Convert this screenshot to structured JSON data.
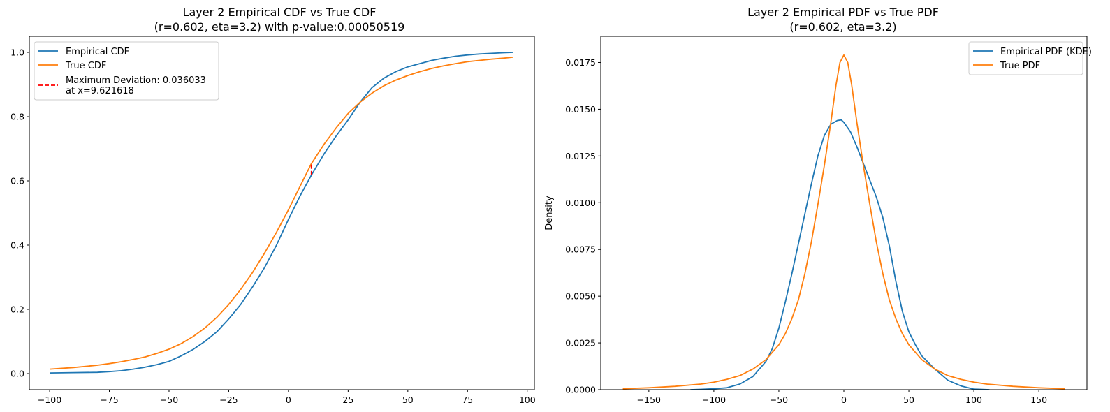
{
  "chart_data": [
    {
      "type": "line",
      "title": [
        "Layer 2 Empirical CDF vs True CDF",
        "(r=0.602, eta=3.2) with p-value:0.00050519"
      ],
      "xlabel": "",
      "ylabel": "",
      "xlim": [
        -108.5,
        103
      ],
      "ylim": [
        -0.05,
        1.05
      ],
      "xticks": [
        -100,
        -75,
        -50,
        -25,
        0,
        25,
        50,
        75,
        100
      ],
      "xtick_labels": [
        "−100",
        "−75",
        "−50",
        "−25",
        "0",
        "25",
        "50",
        "75",
        "100"
      ],
      "yticks": [
        0.0,
        0.2,
        0.4,
        0.6,
        0.8,
        1.0
      ],
      "ytick_labels": [
        "0.0",
        "0.2",
        "0.4",
        "0.6",
        "0.8",
        "1.0"
      ],
      "grid": false,
      "legend_position": "upper-left",
      "legend": [
        "Empirical CDF",
        "True CDF",
        "Maximum Deviation: 0.036033",
        "at x=9.621618"
      ],
      "series": [
        {
          "name": "Empirical CDF",
          "color": "#1f77b4",
          "x": [
            -100,
            -90,
            -80,
            -75,
            -70,
            -65,
            -60,
            -55,
            -50,
            -45,
            -40,
            -35,
            -30,
            -25,
            -20,
            -15,
            -10,
            -5,
            0,
            5,
            9.62,
            15,
            20,
            25,
            30,
            35,
            40,
            45,
            50,
            55,
            60,
            65,
            70,
            75,
            80,
            85,
            90,
            94
          ],
          "y": [
            0.002,
            0.003,
            0.004,
            0.006,
            0.009,
            0.014,
            0.02,
            0.028,
            0.038,
            0.055,
            0.075,
            0.1,
            0.13,
            0.17,
            0.215,
            0.27,
            0.33,
            0.4,
            0.48,
            0.555,
            0.618,
            0.685,
            0.74,
            0.79,
            0.845,
            0.89,
            0.92,
            0.94,
            0.955,
            0.965,
            0.975,
            0.982,
            0.988,
            0.992,
            0.995,
            0.997,
            0.999,
            1.0
          ]
        },
        {
          "name": "True CDF",
          "color": "#ff7f0e",
          "x": [
            -100,
            -90,
            -80,
            -75,
            -70,
            -65,
            -60,
            -55,
            -50,
            -45,
            -40,
            -35,
            -30,
            -25,
            -20,
            -15,
            -10,
            -5,
            0,
            5,
            9.62,
            15,
            20,
            25,
            30,
            35,
            40,
            45,
            50,
            55,
            60,
            65,
            70,
            75,
            80,
            85,
            90,
            94
          ],
          "y": [
            0.014,
            0.019,
            0.026,
            0.031,
            0.037,
            0.044,
            0.052,
            0.063,
            0.076,
            0.093,
            0.115,
            0.142,
            0.175,
            0.215,
            0.262,
            0.315,
            0.375,
            0.44,
            0.51,
            0.585,
            0.654,
            0.715,
            0.765,
            0.81,
            0.845,
            0.873,
            0.896,
            0.914,
            0.928,
            0.94,
            0.95,
            0.958,
            0.965,
            0.971,
            0.975,
            0.979,
            0.982,
            0.985
          ]
        }
      ],
      "max_deviation": {
        "label": "Maximum Deviation: 0.036033",
        "label_line2": "at x=9.621618",
        "x": 9.621618,
        "y_low": 0.618,
        "y_high": 0.654,
        "color": "#ff0000"
      }
    },
    {
      "type": "line",
      "title": [
        "Layer 2 Empirical PDF vs True PDF",
        "(r=0.602, eta=3.2)"
      ],
      "xlabel": "",
      "ylabel": "Density",
      "xlim": [
        -187,
        187
      ],
      "ylim": [
        0,
        0.0189
      ],
      "xticks": [
        -150,
        -100,
        -50,
        0,
        50,
        100,
        150
      ],
      "xtick_labels": [
        "−150",
        "−100",
        "−50",
        "0",
        "50",
        "100",
        "150"
      ],
      "yticks": [
        0.0,
        0.0025,
        0.005,
        0.0075,
        0.01,
        0.0125,
        0.015,
        0.0175
      ],
      "ytick_labels": [
        "0.0000",
        "0.0025",
        "0.0050",
        "0.0075",
        "0.0100",
        "0.0125",
        "0.0150",
        "0.0175"
      ],
      "grid": false,
      "legend_position": "upper-right",
      "legend": [
        "Empirical PDF (KDE)",
        "True PDF"
      ],
      "series": [
        {
          "name": "Empirical PDF (KDE)",
          "color": "#1f77b4",
          "x": [
            -118,
            -110,
            -100,
            -90,
            -80,
            -70,
            -60,
            -55,
            -50,
            -45,
            -40,
            -35,
            -30,
            -25,
            -20,
            -15,
            -10,
            -5,
            -2,
            0,
            5,
            10,
            15,
            20,
            25,
            30,
            35,
            40,
            45,
            50,
            55,
            60,
            70,
            80,
            90,
            100,
            112
          ],
          "y": [
            0.0,
            2e-05,
            5e-05,
            0.0001,
            0.0003,
            0.0007,
            0.0015,
            0.0022,
            0.0033,
            0.0047,
            0.0062,
            0.0078,
            0.0094,
            0.011,
            0.0125,
            0.0136,
            0.0142,
            0.0144,
            0.01443,
            0.0143,
            0.0138,
            0.013,
            0.0121,
            0.0112,
            0.0103,
            0.0092,
            0.0077,
            0.0058,
            0.0042,
            0.0031,
            0.0024,
            0.0018,
            0.0011,
            0.0005,
            0.0002,
            3e-05,
            0.0
          ]
        },
        {
          "name": "True PDF",
          "color": "#ff7f0e",
          "x": [
            -170,
            -150,
            -130,
            -110,
            -100,
            -90,
            -80,
            -70,
            -60,
            -50,
            -45,
            -40,
            -35,
            -30,
            -25,
            -20,
            -15,
            -10,
            -6,
            -3,
            0,
            3,
            6,
            10,
            15,
            20,
            25,
            30,
            35,
            40,
            45,
            50,
            60,
            70,
            80,
            90,
            100,
            110,
            130,
            150,
            170
          ],
          "y": [
            5e-05,
            0.0001,
            0.00018,
            0.0003,
            0.0004,
            0.00055,
            0.00075,
            0.0011,
            0.0016,
            0.0024,
            0.003,
            0.0038,
            0.0048,
            0.0062,
            0.0079,
            0.0099,
            0.012,
            0.0143,
            0.0163,
            0.0175,
            0.0179,
            0.0175,
            0.0163,
            0.0143,
            0.012,
            0.0099,
            0.0079,
            0.0062,
            0.0048,
            0.0038,
            0.003,
            0.0024,
            0.0016,
            0.0011,
            0.00075,
            0.00055,
            0.0004,
            0.0003,
            0.00018,
            0.0001,
            5e-05
          ]
        }
      ]
    }
  ]
}
